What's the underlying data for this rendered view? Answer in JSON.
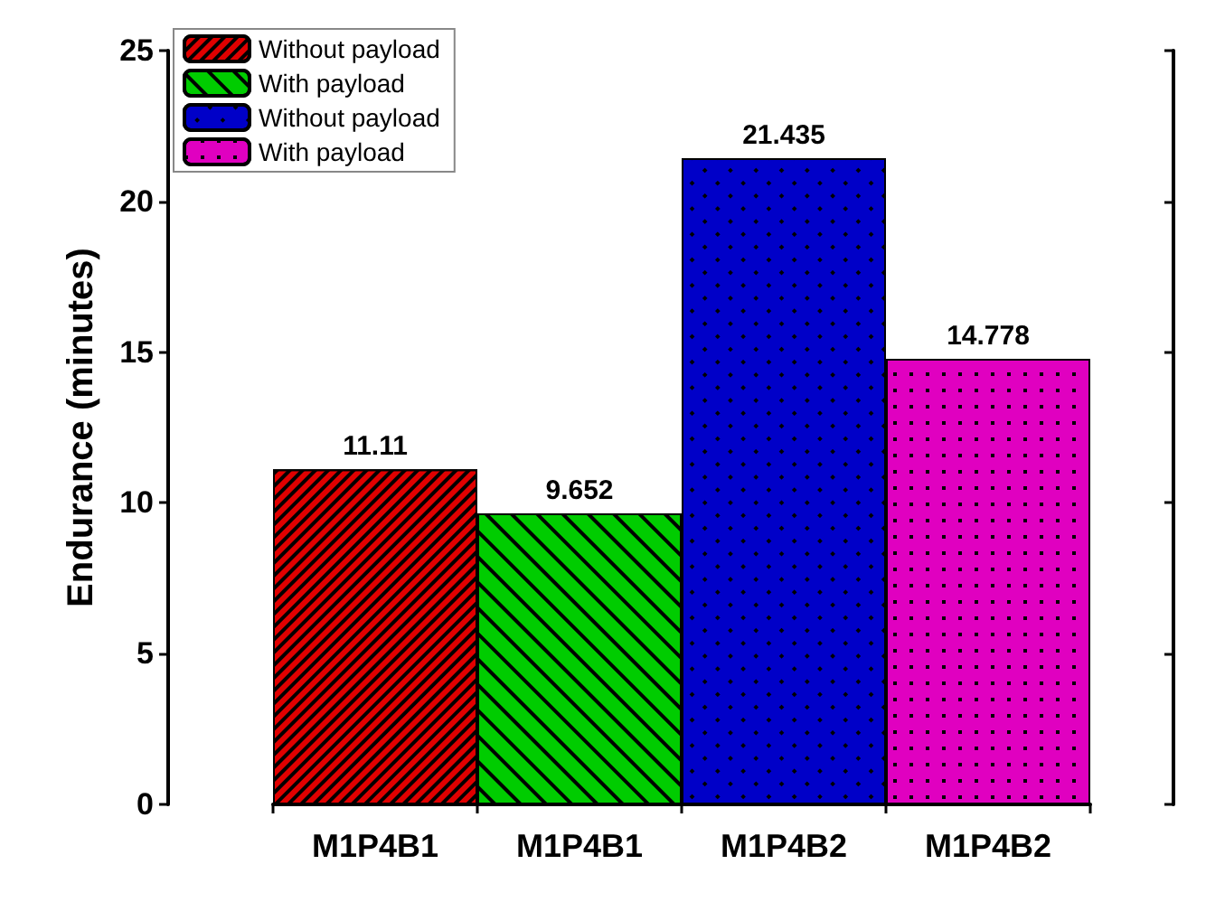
{
  "chart_data": {
    "type": "bar",
    "ylabel": "Endurance (minutes)",
    "categories": [
      "M1P4B1",
      "M1P4B1",
      "M1P4B2",
      "M1P4B2"
    ],
    "series": [
      {
        "name": "Without payload",
        "color": "#e00000",
        "values": [
          11.11,
          null,
          null,
          null
        ]
      },
      {
        "name": "With payload",
        "color": "#00cc00",
        "values": [
          null,
          9.652,
          null,
          null
        ]
      },
      {
        "name": "Without payload",
        "color": "#0000c8",
        "values": [
          null,
          null,
          21.435,
          null
        ]
      },
      {
        "name": "With payload",
        "color": "#e000c0",
        "values": [
          null,
          null,
          null,
          14.778
        ]
      }
    ],
    "stacked": true,
    "ylim": [
      0,
      25
    ],
    "yticks": [
      0,
      5,
      10,
      15,
      20,
      25
    ],
    "data_labels": true,
    "legend": "top left",
    "grid": false
  }
}
